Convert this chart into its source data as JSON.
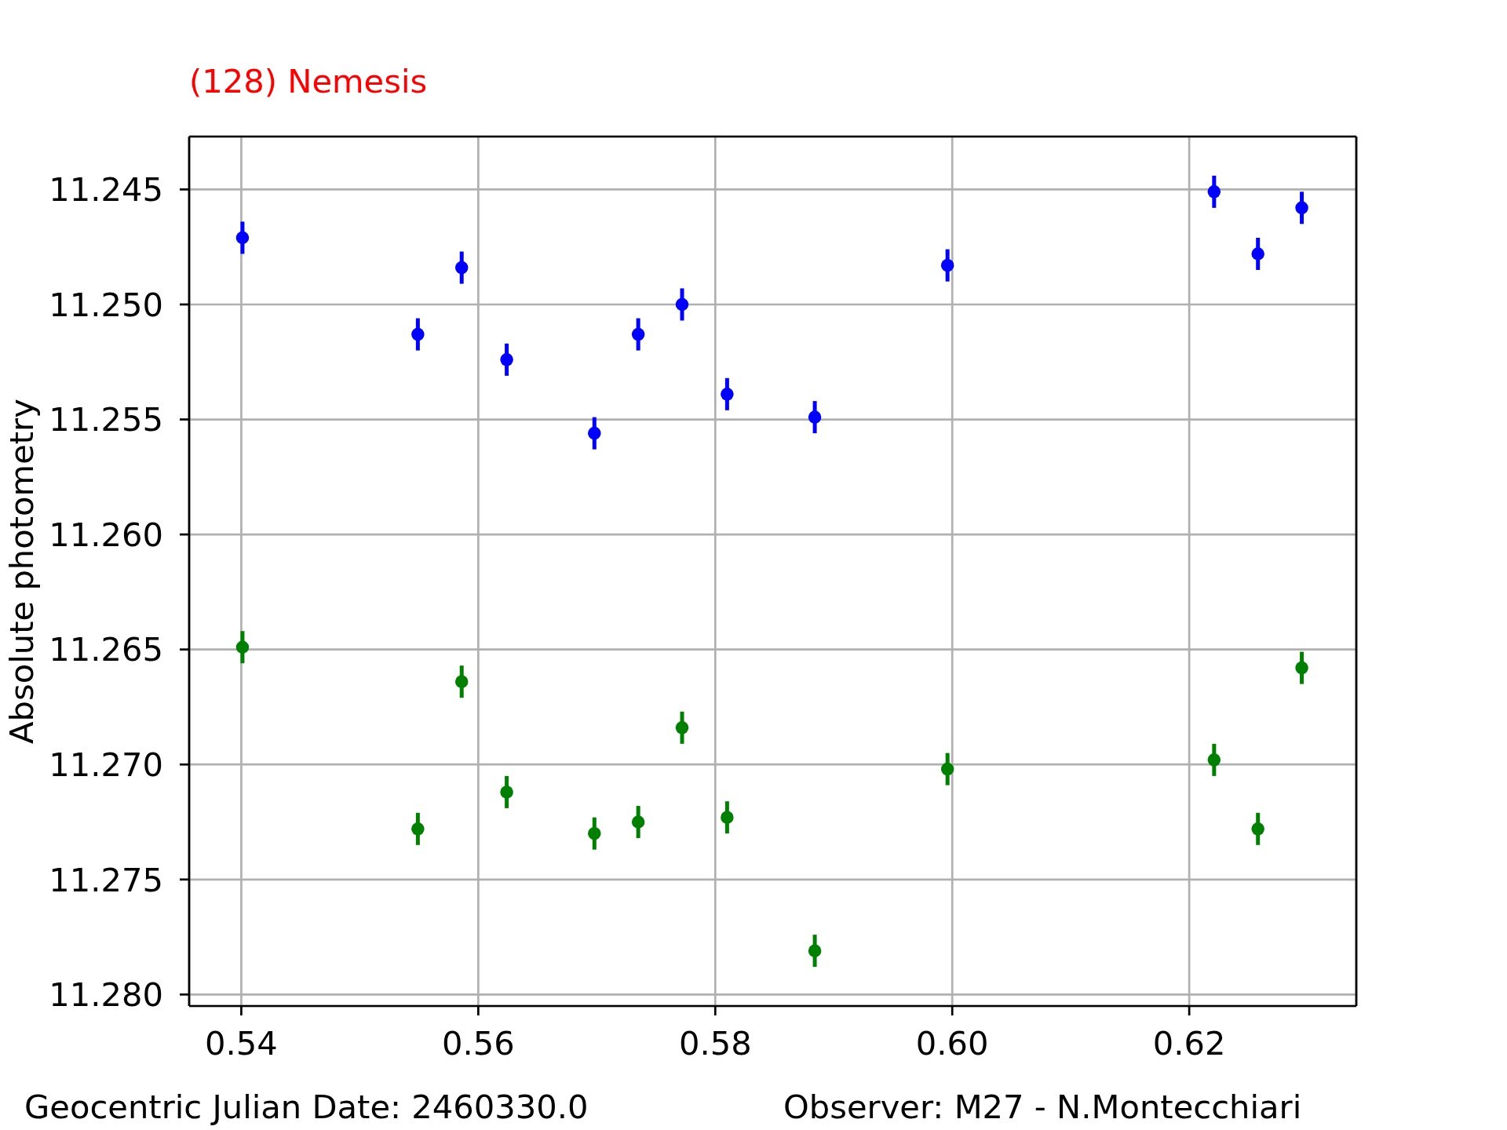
{
  "chart_data": {
    "type": "scatter",
    "title": "(128) Nemesis",
    "ylabel": "Absolute photometry",
    "annotations": [
      "Geocentric Julian Date: 2460330.0",
      "Observer: M27 - N.Montecchiari"
    ],
    "x": [
      0.5401,
      0.5549,
      0.5586,
      0.5624,
      0.5698,
      0.5735,
      0.5772,
      0.581,
      0.5884,
      0.5996,
      0.6221,
      0.6258,
      0.6295
    ],
    "series": [
      {
        "color": "#0000ff",
        "values": [
          11.2471,
          11.2513,
          11.2484,
          11.2524,
          11.2556,
          11.2513,
          11.25,
          11.2539,
          11.2549,
          11.2483,
          11.2451,
          11.2478,
          11.2458
        ],
        "errors": [
          0.0007,
          0.0007,
          0.0007,
          0.0007,
          0.0007,
          0.0007,
          0.0007,
          0.0007,
          0.0007,
          0.0007,
          0.0007,
          0.0007,
          0.0007
        ]
      },
      {
        "color": "#008000",
        "values": [
          11.2649,
          11.2728,
          11.2664,
          11.2712,
          11.273,
          11.2725,
          11.2684,
          11.2723,
          11.2781,
          11.2702,
          11.2698,
          11.2728,
          11.2658
        ],
        "errors": [
          0.0007,
          0.0007,
          0.0007,
          0.0007,
          0.0007,
          0.0007,
          0.0007,
          0.0007,
          0.0007,
          0.0007,
          0.0007,
          0.0007,
          0.0007
        ]
      }
    ],
    "xlim": [
      0.5356,
      0.6341
    ],
    "ylim": [
      11.2805,
      11.2427
    ],
    "xticks": [
      0.54,
      0.56,
      0.58,
      {
        "value": 0.6,
        "label": "0.60"
      },
      0.62
    ],
    "yticks": [
      11.245,
      {
        "value": 11.25,
        "label": "11.250"
      },
      11.255,
      {
        "value": 11.26,
        "label": "11.260"
      },
      11.265,
      {
        "value": 11.27,
        "label": "11.270"
      },
      11.275,
      {
        "value": 11.28,
        "label": "11.280"
      }
    ],
    "grid": true,
    "marker": "circle"
  }
}
